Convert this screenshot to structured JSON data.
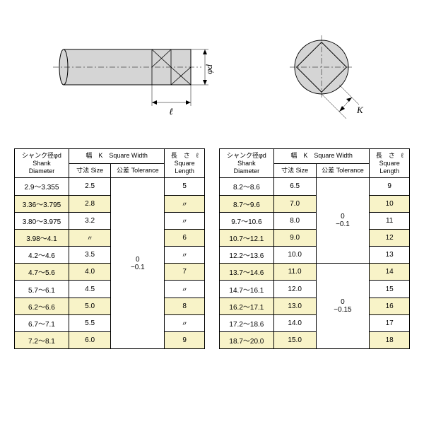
{
  "diagram": {
    "label_phi_d": "φd",
    "label_ell": "ℓ",
    "label_K": "K"
  },
  "header": {
    "shank_jp": "シャンク径φd",
    "shank_en1": "Shank",
    "shank_en2": "Diameter",
    "width_header": "幅　K　Square Width",
    "size_jp": "寸法",
    "size_en": "Size",
    "tol_jp": "公差",
    "tol_en": "Tolerance",
    "len_jp": "長　さ　ℓ",
    "len_en1": "Square",
    "len_en2": "Length"
  },
  "left": {
    "tol": "0\n−0.1",
    "rows": [
      {
        "d": "2.9〜3.355",
        "s": "2.5",
        "l": "5",
        "shade": false
      },
      {
        "d": "3.36〜3.795",
        "s": "2.8",
        "l": "〃",
        "shade": true
      },
      {
        "d": "3.80〜3.975",
        "s": "3.2",
        "l": "〃",
        "shade": false
      },
      {
        "d": "3.98〜4.1",
        "s": "〃",
        "l": "6",
        "shade": true
      },
      {
        "d": "4.2〜4.6",
        "s": "3.5",
        "l": "〃",
        "shade": false
      },
      {
        "d": "4.7〜5.6",
        "s": "4.0",
        "l": "7",
        "shade": true
      },
      {
        "d": "5.7〜6.1",
        "s": "4.5",
        "l": "〃",
        "shade": false
      },
      {
        "d": "6.2〜6.6",
        "s": "5.0",
        "l": "8",
        "shade": true
      },
      {
        "d": "6.7〜7.1",
        "s": "5.5",
        "l": "〃",
        "shade": false
      },
      {
        "d": "7.2〜8.1",
        "s": "6.0",
        "l": "9",
        "shade": true
      }
    ]
  },
  "right": {
    "tol1": "0\n−0.1",
    "tol2": "0\n−0.15",
    "rows": [
      {
        "d": "8.2〜8.6",
        "s": "6.5",
        "l": "9",
        "shade": false
      },
      {
        "d": "8.7〜9.6",
        "s": "7.0",
        "l": "10",
        "shade": true
      },
      {
        "d": "9.7〜10.6",
        "s": "8.0",
        "l": "11",
        "shade": false
      },
      {
        "d": "10.7〜12.1",
        "s": "9.0",
        "l": "12",
        "shade": true
      },
      {
        "d": "12.2〜13.6",
        "s": "10.0",
        "l": "13",
        "shade": false
      },
      {
        "d": "13.7〜14.6",
        "s": "11.0",
        "l": "14",
        "shade": true
      },
      {
        "d": "14.7〜16.1",
        "s": "12.0",
        "l": "15",
        "shade": false
      },
      {
        "d": "16.2〜17.1",
        "s": "13.0",
        "l": "16",
        "shade": true
      },
      {
        "d": "17.2〜18.6",
        "s": "14.0",
        "l": "17",
        "shade": false
      },
      {
        "d": "18.7〜20.0",
        "s": "15.0",
        "l": "18",
        "shade": true
      }
    ]
  },
  "colors": {
    "shade": "#f8f3c8",
    "border": "#000000"
  }
}
